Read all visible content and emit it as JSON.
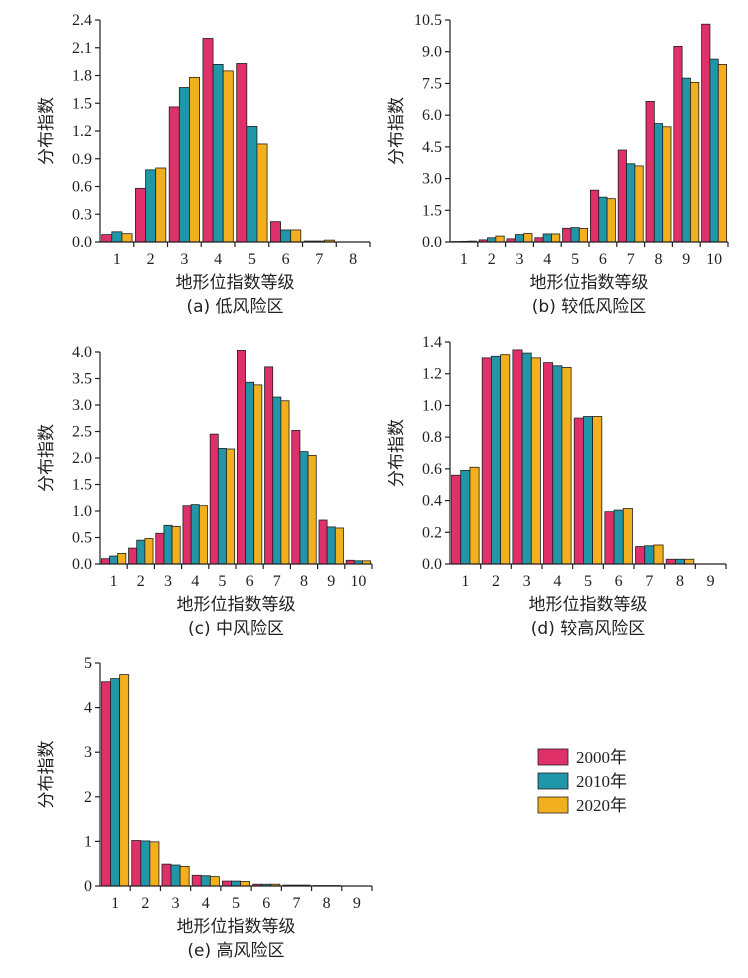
{
  "series_names": [
    "2000年",
    "2010年",
    "2020年"
  ],
  "colors": {
    "2000年": "#e0306a",
    "2010年": "#1f97a8",
    "2020年": "#f2b01e"
  },
  "chart_data": [
    {
      "type": "bar",
      "caption": "(a) 低风险区",
      "xlabel": "地形位指数等级",
      "ylabel": "分布指数",
      "categories": [
        "1",
        "2",
        "3",
        "4",
        "5",
        "6",
        "7",
        "8"
      ],
      "ylim": [
        0,
        2.4
      ],
      "yticks": [
        "0.0",
        "0.3",
        "0.6",
        "0.9",
        "1.2",
        "1.5",
        "1.8",
        "2.1",
        "2.4"
      ],
      "series": [
        {
          "name": "2000年",
          "values": [
            0.08,
            0.58,
            1.46,
            2.2,
            1.93,
            0.22,
            0.01,
            0.0
          ]
        },
        {
          "name": "2010年",
          "values": [
            0.11,
            0.78,
            1.67,
            1.92,
            1.25,
            0.13,
            0.01,
            0.0
          ]
        },
        {
          "name": "2020年",
          "values": [
            0.09,
            0.8,
            1.78,
            1.85,
            1.06,
            0.13,
            0.02,
            0.0
          ]
        }
      ]
    },
    {
      "type": "bar",
      "caption": "(b) 较低风险区",
      "xlabel": "地形位指数等级",
      "ylabel": "分布指数",
      "categories": [
        "1",
        "2",
        "3",
        "4",
        "5",
        "6",
        "7",
        "8",
        "9",
        "10"
      ],
      "ylim": [
        0,
        10.5
      ],
      "yticks": [
        "0.0",
        "1.5",
        "3.0",
        "4.5",
        "6.0",
        "7.5",
        "9.0",
        "10.5"
      ],
      "series": [
        {
          "name": "2000年",
          "values": [
            0.02,
            0.1,
            0.15,
            0.2,
            0.65,
            2.45,
            4.35,
            6.65,
            9.25,
            10.3
          ]
        },
        {
          "name": "2010年",
          "values": [
            0.03,
            0.2,
            0.35,
            0.38,
            0.68,
            2.12,
            3.7,
            5.6,
            7.75,
            8.65
          ]
        },
        {
          "name": "2020年",
          "values": [
            0.04,
            0.28,
            0.4,
            0.38,
            0.64,
            2.05,
            3.6,
            5.45,
            7.55,
            8.4
          ]
        }
      ]
    },
    {
      "type": "bar",
      "caption": "(c) 中风险区",
      "xlabel": "地形位指数等级",
      "ylabel": "分布指数",
      "categories": [
        "1",
        "2",
        "3",
        "4",
        "5",
        "6",
        "7",
        "8",
        "9",
        "10"
      ],
      "ylim": [
        0,
        4.0
      ],
      "yticks": [
        "0.0",
        "0.5",
        "1.0",
        "1.5",
        "2.0",
        "2.5",
        "3.0",
        "3.5",
        "4.0"
      ],
      "series": [
        {
          "name": "2000年",
          "values": [
            0.1,
            0.3,
            0.58,
            1.1,
            2.45,
            4.03,
            3.72,
            2.52,
            0.83,
            0.07
          ]
        },
        {
          "name": "2010年",
          "values": [
            0.15,
            0.45,
            0.73,
            1.12,
            2.18,
            3.43,
            3.15,
            2.12,
            0.7,
            0.06
          ]
        },
        {
          "name": "2020年",
          "values": [
            0.2,
            0.48,
            0.71,
            1.1,
            2.17,
            3.38,
            3.08,
            2.05,
            0.68,
            0.06
          ]
        }
      ]
    },
    {
      "type": "bar",
      "caption": "(d) 较高风险区",
      "xlabel": "地形位指数等级",
      "ylabel": "分布指数",
      "categories": [
        "1",
        "2",
        "3",
        "4",
        "5",
        "6",
        "7",
        "8",
        "9"
      ],
      "ylim": [
        0,
        1.4
      ],
      "yticks": [
        "0.0",
        "0.2",
        "0.4",
        "0.6",
        "0.8",
        "1.0",
        "1.2",
        "1.4"
      ],
      "series": [
        {
          "name": "2000年",
          "values": [
            0.56,
            1.3,
            1.35,
            1.27,
            0.92,
            0.33,
            0.11,
            0.03,
            0.0
          ]
        },
        {
          "name": "2010年",
          "values": [
            0.59,
            1.31,
            1.33,
            1.25,
            0.93,
            0.34,
            0.115,
            0.03,
            0.0
          ]
        },
        {
          "name": "2020年",
          "values": [
            0.61,
            1.32,
            1.3,
            1.24,
            0.93,
            0.35,
            0.12,
            0.03,
            0.0
          ]
        }
      ]
    },
    {
      "type": "bar",
      "caption": "(e) 高风险区",
      "xlabel": "地形位指数等级",
      "ylabel": "分布指数",
      "categories": [
        "1",
        "2",
        "3",
        "4",
        "5",
        "6",
        "7",
        "8",
        "9"
      ],
      "ylim": [
        0,
        5
      ],
      "yticks": [
        "0",
        "1",
        "2",
        "3",
        "4",
        "5"
      ],
      "series": [
        {
          "name": "2000年",
          "values": [
            4.58,
            1.02,
            0.49,
            0.24,
            0.11,
            0.04,
            0.02,
            0.01,
            0.0
          ]
        },
        {
          "name": "2010年",
          "values": [
            4.65,
            1.01,
            0.47,
            0.23,
            0.11,
            0.04,
            0.02,
            0.01,
            0.0
          ]
        },
        {
          "name": "2020年",
          "values": [
            4.74,
            0.99,
            0.44,
            0.21,
            0.1,
            0.04,
            0.02,
            0.01,
            0.0
          ]
        }
      ]
    }
  ],
  "legend": {
    "placement": "right of panel (e)",
    "items": [
      "2000年",
      "2010年",
      "2020年"
    ]
  }
}
